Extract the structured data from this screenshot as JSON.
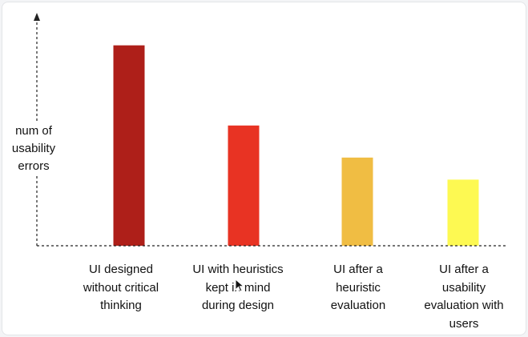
{
  "chart_data": {
    "type": "bar",
    "title": "",
    "xlabel": "",
    "ylabel": "num of usability errors",
    "categories": [
      "UI designed without critical thinking",
      "UI with heuristics kept in mind during design",
      "UI after a heuristic evaluation",
      "UI after a usability evaluation with users"
    ],
    "values": [
      10,
      6,
      4.4,
      3.3
    ],
    "ylim": [
      0,
      11
    ],
    "colors": [
      "#ae1f19",
      "#e83323",
      "#f0bd43",
      "#fdf952"
    ],
    "grid": false,
    "axis_style": "dashed"
  }
}
